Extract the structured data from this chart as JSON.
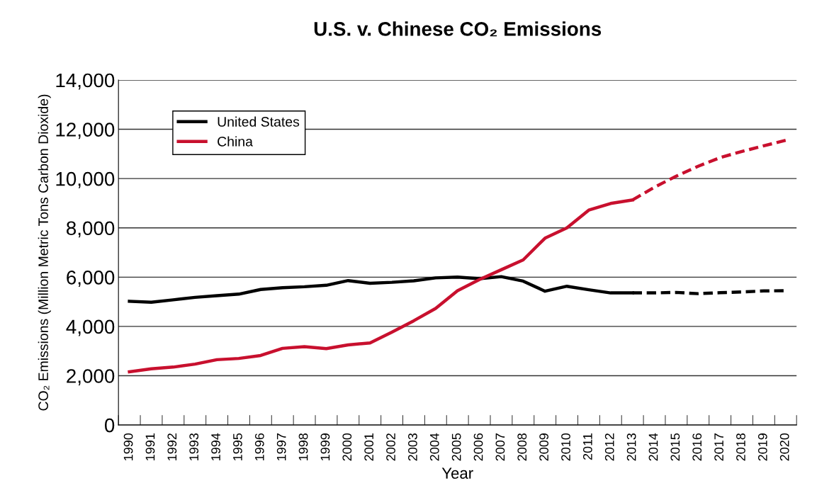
{
  "chart_data": {
    "type": "line",
    "title": "U.S. v. Chinese CO₂ Emissions",
    "xlabel": "Year",
    "ylabel": "CO₂ Emissions (Million Metric Tons Carbon Dioxide)",
    "categories": [
      "1990",
      "1991",
      "1992",
      "1993",
      "1994",
      "1995",
      "1996",
      "1997",
      "1998",
      "1999",
      "2000",
      "2001",
      "2002",
      "2003",
      "2004",
      "2005",
      "2006",
      "2007",
      "2008",
      "2009",
      "2010",
      "2011",
      "2012",
      "2013",
      "2014",
      "2015",
      "2016",
      "2017",
      "2018",
      "2019",
      "2020"
    ],
    "series": [
      {
        "name": "United States",
        "color": "#000000",
        "line_style": "solid",
        "values": [
          5020,
          4980,
          5080,
          5180,
          5250,
          5310,
          5500,
          5570,
          5610,
          5670,
          5860,
          5750,
          5790,
          5850,
          5970,
          6000,
          5940,
          6020,
          5840,
          5430,
          5630,
          5490,
          5360,
          5360,
          null,
          null,
          null,
          null,
          null,
          null,
          null
        ]
      },
      {
        "name": "China",
        "color": "#c8102e",
        "line_style": "solid",
        "values": [
          2160,
          2280,
          2350,
          2470,
          2650,
          2700,
          2820,
          3110,
          3180,
          3100,
          3250,
          3330,
          3770,
          4230,
          4730,
          5450,
          5900,
          6300,
          6700,
          7580,
          8000,
          8720,
          8990,
          9130,
          null,
          null,
          null,
          null,
          null,
          null,
          null
        ]
      },
      {
        "color": "#000000",
        "line_style": "dashed",
        "values": [
          null,
          null,
          null,
          null,
          null,
          null,
          null,
          null,
          null,
          null,
          null,
          null,
          null,
          null,
          null,
          null,
          null,
          null,
          null,
          null,
          null,
          null,
          null,
          5360,
          5360,
          5380,
          5330,
          5370,
          5400,
          5440,
          5450
        ]
      },
      {
        "color": "#c8102e",
        "line_style": "dashed",
        "values": [
          null,
          null,
          null,
          null,
          null,
          null,
          null,
          null,
          null,
          null,
          null,
          null,
          null,
          null,
          null,
          null,
          null,
          null,
          null,
          null,
          null,
          null,
          null,
          9130,
          9650,
          10100,
          10500,
          10850,
          11100,
          11330,
          11550
        ]
      }
    ],
    "ylim": [
      0,
      14000
    ],
    "yticks": [
      0,
      {
        "value": 2000,
        "label": "2,000"
      },
      {
        "value": 4000,
        "label": "4,000"
      },
      {
        "value": 6000,
        "label": "6,000"
      },
      {
        "value": 8000,
        "label": "8,000"
      },
      {
        "value": 10000,
        "label": "10,000"
      },
      {
        "value": 12000,
        "label": "12,000"
      },
      {
        "value": 14000,
        "label": "14,000"
      }
    ],
    "grid": "y",
    "legend": "top left",
    "marker": "none"
  }
}
